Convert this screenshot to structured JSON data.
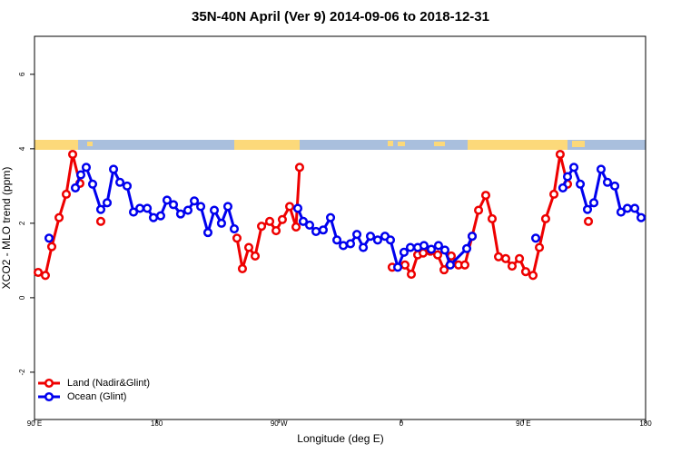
{
  "chart_data": {
    "type": "line",
    "title": "35N-40N April (Ver 9)   2014-09-06 to 2018-12-31",
    "x_label": "Longitude (deg E)",
    "y_label": "XCO2 - MLO trend (ppm)",
    "xlim": [
      90,
      540
    ],
    "xticks": [
      {
        "value": 90,
        "label": "90 E"
      },
      180,
      {
        "value": 270,
        "label": "90 W"
      },
      {
        "value": 360,
        "label": "0"
      },
      {
        "value": 450,
        "label": "90 E"
      },
      {
        "value": 540,
        "label": "180"
      }
    ],
    "ylim": [
      -3.27,
      7.02
    ],
    "yticks": [
      -2,
      0,
      2,
      4,
      6
    ],
    "legend": "bottom-left",
    "series": [
      {
        "name": "Land (Nadir&Glint)",
        "color": "#ee0000",
        "x": [
          92.7,
          98.0,
          102.7,
          108.1,
          113.4,
          118.1,
          123.4,
          null,
          138.8,
          null,
          239.1,
          243.1,
          247.8,
          252.5,
          257.2,
          263.2,
          267.9,
          272.5,
          277.9,
          282.6,
          285.2,
          null,
          353.4,
          362.8,
          367.5,
          372.2,
          376.2,
          381.5,
          386.9,
          391.6,
          396.9,
          402.2,
          406.9,
          412.3,
          417.0,
          422.3,
          427.0,
          431.7,
          437.0,
          441.7,
          447.1,
          451.7,
          457.1,
          461.8,
          466.4,
          472.5,
          477.1,
          482.5,
          null,
          497.9
        ],
        "values": [
          0.68,
          0.6,
          1.37,
          2.15,
          2.78,
          3.85,
          3.07,
          null,
          2.05,
          null,
          1.6,
          0.78,
          1.35,
          1.12,
          1.92,
          2.05,
          1.8,
          2.1,
          2.45,
          1.9,
          3.5,
          null,
          0.82,
          0.88,
          0.63,
          1.15,
          1.2,
          1.25,
          1.15,
          0.75,
          1.12,
          0.88,
          0.88,
          1.65,
          2.35,
          2.75,
          2.12,
          1.1,
          1.05,
          0.85,
          1.05,
          0.7,
          0.6,
          1.35,
          2.12,
          2.78,
          3.85,
          3.05,
          null,
          2.05
        ]
      },
      {
        "name": "Ocean (Glint)",
        "color": "#0000ee",
        "x": [
          100.7,
          null,
          120.1,
          124.1,
          128.1,
          132.8,
          138.8,
          143.5,
          148.2,
          152.9,
          158.2,
          162.9,
          167.6,
          173.0,
          177.6,
          182.9,
          187.6,
          192.3,
          197.6,
          203.0,
          207.7,
          212.4,
          217.7,
          222.4,
          227.7,
          232.4,
          237.1,
          null,
          283.9,
          287.9,
          292.6,
          297.3,
          302.6,
          308.0,
          312.7,
          317.4,
          322.7,
          327.4,
          332.1,
          337.4,
          342.7,
          348.1,
          352.1,
          357.5,
          362.1,
          366.8,
          372.2,
          376.8,
          382.2,
          387.5,
          392.2,
          396.2,
          408.3,
          412.3,
          null,
          459.1,
          null,
          479.1,
          482.5,
          487.2,
          491.9,
          497.2,
          501.9,
          507.2,
          511.9,
          517.3,
          521.9,
          526.6,
          532.0,
          536.7
        ],
        "values": [
          1.6,
          null,
          2.95,
          3.3,
          3.5,
          3.05,
          2.37,
          2.55,
          3.45,
          3.1,
          3.0,
          2.3,
          2.4,
          2.4,
          2.15,
          2.2,
          2.62,
          2.5,
          2.25,
          2.35,
          2.6,
          2.45,
          1.75,
          2.35,
          2.0,
          2.45,
          1.85,
          null,
          2.4,
          2.05,
          1.95,
          1.78,
          1.82,
          2.15,
          1.55,
          1.4,
          1.45,
          1.7,
          1.35,
          1.65,
          1.55,
          1.65,
          1.55,
          0.82,
          1.22,
          1.35,
          1.35,
          1.4,
          1.3,
          1.4,
          1.28,
          0.88,
          1.32,
          1.65,
          null,
          1.6,
          null,
          2.95,
          3.25,
          3.5,
          3.05,
          2.37,
          2.55,
          3.45,
          3.1,
          3.0,
          2.3,
          2.4,
          2.4,
          2.15
        ]
      }
    ]
  }
}
